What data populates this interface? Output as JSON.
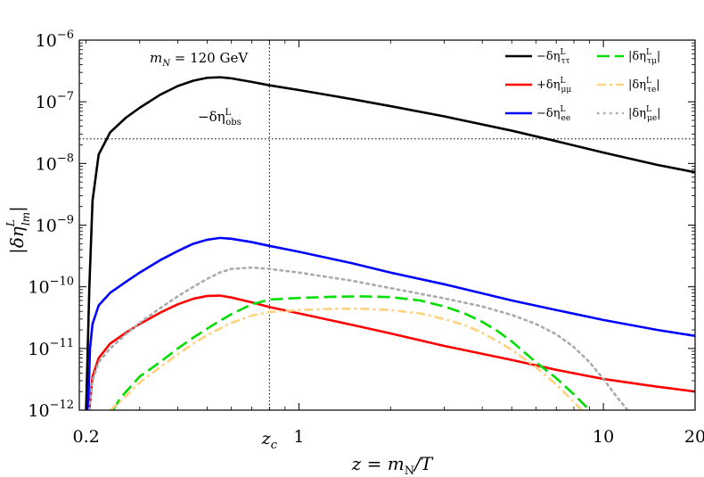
{
  "chart_data": {
    "type": "line",
    "x_scale": "log",
    "y_scale": "log",
    "xlim": [
      0.19,
      20
    ],
    "ylim": [
      1e-12,
      1e-06
    ],
    "xlabel": "z = m_N/T",
    "ylabel": "|δη^L_lm|",
    "x_ticks": [
      {
        "value": 0.2,
        "label": "0.2"
      },
      {
        "value": 0.8,
        "label": "z_c"
      },
      {
        "value": 1,
        "label": "1"
      },
      {
        "value": 10,
        "label": "10"
      },
      {
        "value": 20,
        "label": "20"
      }
    ],
    "y_ticks": [
      {
        "value": 1e-12,
        "base": "10",
        "exp": "−12"
      },
      {
        "value": 1e-11,
        "base": "10",
        "exp": "−11"
      },
      {
        "value": 1e-10,
        "base": "10",
        "exp": "−10"
      },
      {
        "value": 1e-09,
        "base": "10",
        "exp": "−9"
      },
      {
        "value": 1e-08,
        "base": "10",
        "exp": "−8"
      },
      {
        "value": 1e-07,
        "base": "10",
        "exp": "−7"
      },
      {
        "value": 1e-06,
        "base": "10",
        "exp": "−6"
      }
    ],
    "reference_lines": {
      "vertical": {
        "x": 0.8,
        "label": "z_c"
      },
      "horizontal": {
        "y": 2.5e-08,
        "label": "−δη^L_obs"
      }
    },
    "annotation": "m_N = 120 GeV",
    "legend_position": "top-right",
    "series": [
      {
        "name": "−δη^L_ττ",
        "color": "#000000",
        "dash": "solid",
        "x": [
          0.2,
          0.205,
          0.21,
          0.22,
          0.24,
          0.27,
          0.3,
          0.35,
          0.4,
          0.45,
          0.5,
          0.55,
          0.6,
          0.7,
          0.8,
          1.0,
          1.5,
          2,
          3,
          5,
          7,
          10,
          15,
          20
        ],
        "y": [
          1e-12,
          1e-10,
          2.5e-09,
          1.4e-08,
          3.2e-08,
          5.5e-08,
          8e-08,
          1.3e-07,
          1.8e-07,
          2.2e-07,
          2.45e-07,
          2.5e-07,
          2.4e-07,
          2.1e-07,
          1.85e-07,
          1.55e-07,
          1.1e-07,
          8.5e-08,
          5.8e-08,
          3.4e-08,
          2.3e-08,
          1.5e-08,
          9.5e-09,
          7.2e-09
        ]
      },
      {
        "name": "+δη^L_μμ",
        "color": "#ff0000",
        "dash": "solid",
        "x": [
          0.205,
          0.21,
          0.22,
          0.24,
          0.27,
          0.3,
          0.35,
          0.4,
          0.45,
          0.5,
          0.55,
          0.6,
          0.7,
          0.8,
          1.0,
          1.5,
          2,
          3,
          5,
          7,
          10,
          15,
          20
        ],
        "y": [
          1e-12,
          3.5e-12,
          7e-12,
          1.2e-11,
          1.8e-11,
          2.5e-11,
          3.8e-11,
          5.2e-11,
          6.4e-11,
          7.1e-11,
          7.2e-11,
          6.7e-11,
          5.6e-11,
          4.7e-11,
          3.7e-11,
          2.4e-11,
          1.75e-11,
          1.1e-11,
          6.5e-12,
          4.5e-12,
          3.2e-12,
          2.4e-12,
          2e-12
        ]
      },
      {
        "name": "−δη^L_ee",
        "color": "#0000ff",
        "dash": "solid",
        "x": [
          0.203,
          0.206,
          0.21,
          0.22,
          0.24,
          0.27,
          0.3,
          0.35,
          0.4,
          0.45,
          0.5,
          0.55,
          0.6,
          0.7,
          0.8,
          1.0,
          1.5,
          2,
          3,
          5,
          7,
          10,
          15,
          20
        ],
        "y": [
          1e-12,
          1e-11,
          2.5e-11,
          5e-11,
          8e-11,
          1.2e-10,
          1.7e-10,
          2.7e-10,
          3.8e-10,
          5e-10,
          5.8e-10,
          6.2e-10,
          6e-10,
          5.3e-10,
          4.6e-10,
          3.7e-10,
          2.4e-10,
          1.7e-10,
          1.1e-10,
          6e-11,
          4.2e-11,
          2.9e-11,
          2e-11,
          1.6e-11
        ]
      },
      {
        "name": "|δη^L_τμ|",
        "color": "#00dd00",
        "dash": "long-dash",
        "x": [
          0.245,
          0.26,
          0.28,
          0.3,
          0.35,
          0.4,
          0.45,
          0.5,
          0.55,
          0.6,
          0.7,
          0.8,
          1.0,
          1.3,
          1.6,
          2,
          2.5,
          3,
          3.5,
          4,
          4.5,
          5,
          6,
          7,
          8,
          9
        ],
        "y": [
          1e-12,
          1.6e-12,
          2.4e-12,
          3.5e-12,
          6e-12,
          1e-11,
          1.5e-11,
          2.1e-11,
          2.8e-11,
          3.6e-11,
          5.2e-11,
          6.2e-11,
          6.6e-11,
          6.9e-11,
          7e-11,
          6.8e-11,
          6e-11,
          4.8e-11,
          3.7e-11,
          2.7e-11,
          1.9e-11,
          1.3e-11,
          6e-12,
          3.3e-12,
          1.8e-12,
          1e-12
        ]
      },
      {
        "name": "|δη^L_τe|",
        "color": "#ffd27f",
        "dash": "dash-dot",
        "x": [
          0.24,
          0.26,
          0.28,
          0.3,
          0.35,
          0.4,
          0.45,
          0.5,
          0.55,
          0.6,
          0.7,
          0.8,
          1.0,
          1.3,
          1.6,
          2,
          2.5,
          3,
          3.5,
          4,
          4.5,
          5,
          6,
          7,
          8.5
        ],
        "y": [
          1e-12,
          1.4e-12,
          2e-12,
          2.8e-12,
          5e-12,
          8e-12,
          1.2e-11,
          1.65e-11,
          2.1e-11,
          2.6e-11,
          3.4e-11,
          3.9e-11,
          4.2e-11,
          4.4e-11,
          4.4e-11,
          4.2e-11,
          3.7e-11,
          3e-11,
          2.4e-11,
          1.8e-11,
          1.3e-11,
          9.5e-12,
          5e-12,
          2.6e-12,
          1e-12
        ]
      },
      {
        "name": "|δη^L_μe|",
        "color": "#aaaaaa",
        "dash": "dotted",
        "x": [
          0.205,
          0.21,
          0.22,
          0.24,
          0.27,
          0.3,
          0.35,
          0.4,
          0.45,
          0.5,
          0.55,
          0.6,
          0.7,
          0.8,
          1.0,
          1.5,
          2,
          3,
          4,
          5,
          6,
          7,
          8,
          9,
          10,
          11,
          12
        ],
        "y": [
          1e-12,
          3e-12,
          6e-12,
          1e-11,
          1.7e-11,
          2.6e-11,
          4.5e-11,
          7e-11,
          1e-10,
          1.35e-10,
          1.7e-10,
          1.95e-10,
          2.05e-10,
          1.95e-10,
          1.7e-10,
          1.25e-10,
          9.5e-11,
          6.5e-11,
          4.8e-11,
          3.5e-11,
          2.5e-11,
          1.7e-11,
          1.05e-11,
          6e-12,
          3.2e-12,
          1.7e-12,
          1e-12
        ]
      }
    ]
  }
}
